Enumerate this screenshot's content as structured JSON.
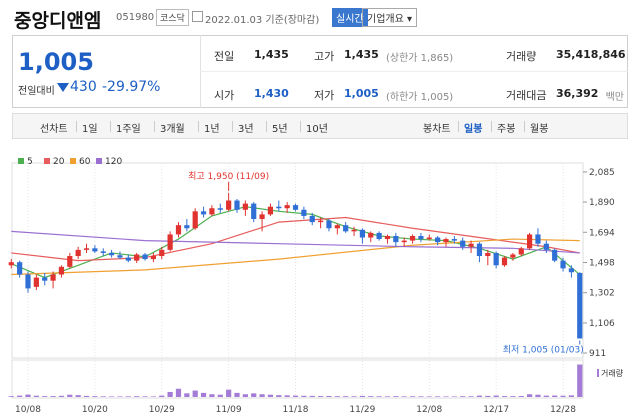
{
  "header": {
    "name": "중앙디앤엠",
    "code": "051980",
    "market": "코스닥",
    "date": "2022.01.03 기준(장마감)",
    "realtime": "실시간",
    "company": "기업개요 ▾"
  },
  "quote": {
    "price": "1,005",
    "change_label": "전일대비",
    "change": "430",
    "change_pct": "-29.97%"
  },
  "stats": [
    {
      "label": "전일",
      "value": "1,435"
    },
    {
      "label": "고가",
      "value": "1,435",
      "note": "(상한가 1,865)"
    },
    {
      "label": "거래량",
      "value": "35,418,846"
    },
    {
      "label": "시가",
      "value": "1,430"
    },
    {
      "label": "저가",
      "value": "1,005",
      "note": "(하한가 1,005)"
    },
    {
      "label": "거래대금",
      "value": "36,392",
      "note": "백만"
    }
  ],
  "tabs": {
    "line_label": "선차트",
    "line_tabs": [
      "1일",
      "1주일",
      "3개월",
      "1년",
      "3년",
      "5년",
      "10년"
    ],
    "candle_label": "봉차트",
    "candle_tabs": [
      "일봉",
      "주봉",
      "월봉"
    ],
    "selected": "일봉"
  },
  "chart_data": {
    "type": "candlestick",
    "up_color": "#e0322f",
    "down_color": "#2f6fd6",
    "categories": [
      null,
      null,
      "10/08",
      null,
      null,
      null,
      null,
      null,
      null,
      null,
      "10/20",
      null,
      null,
      null,
      null,
      null,
      null,
      null,
      "10/29",
      null,
      null,
      null,
      null,
      null,
      null,
      null,
      "11/09",
      null,
      null,
      null,
      null,
      null,
      null,
      null,
      "11/18",
      null,
      null,
      null,
      null,
      null,
      null,
      null,
      "11/29",
      null,
      null,
      null,
      null,
      null,
      null,
      null,
      "12/08",
      null,
      null,
      null,
      null,
      null,
      null,
      null,
      "12/17",
      null,
      null,
      null,
      null,
      null,
      null,
      null,
      "12/28",
      null,
      null
    ],
    "open": [
      1480,
      1500,
      1420,
      1340,
      1400,
      1380,
      1420,
      1470,
      1540,
      1580,
      1590,
      1570,
      1560,
      1545,
      1530,
      1510,
      1550,
      1520,
      1540,
      1580,
      1680,
      1740,
      1720,
      1830,
      1810,
      1850,
      1840,
      1900,
      1840,
      1880,
      1780,
      1810,
      1860,
      1850,
      1870,
      1840,
      1800,
      1760,
      1770,
      1720,
      1740,
      1700,
      1710,
      1660,
      1690,
      1650,
      1670,
      1630,
      1640,
      1670,
      1650,
      1660,
      1630,
      1650,
      1640,
      1600,
      1620,
      1540,
      1560,
      1480,
      1530,
      1550,
      1590,
      1680,
      1620,
      1580,
      1510,
      1460,
      1430
    ],
    "high": [
      1520,
      1510,
      1440,
      1420,
      1430,
      1440,
      1480,
      1560,
      1600,
      1620,
      1610,
      1590,
      1580,
      1570,
      1550,
      1560,
      1560,
      1560,
      1600,
      1700,
      1760,
      1780,
      1850,
      1860,
      1870,
      1880,
      1950,
      1910,
      1900,
      1890,
      1830,
      1880,
      1900,
      1890,
      1880,
      1860,
      1820,
      1790,
      1780,
      1750,
      1760,
      1730,
      1720,
      1700,
      1700,
      1680,
      1690,
      1660,
      1680,
      1690,
      1680,
      1670,
      1660,
      1670,
      1660,
      1640,
      1630,
      1580,
      1570,
      1540,
      1560,
      1600,
      1690,
      1720,
      1640,
      1590,
      1530,
      1480,
      1435
    ],
    "low": [
      1460,
      1400,
      1302,
      1320,
      1350,
      1330,
      1400,
      1460,
      1520,
      1560,
      1560,
      1540,
      1530,
      1520,
      1500,
      1495,
      1510,
      1500,
      1520,
      1570,
      1660,
      1700,
      1710,
      1790,
      1800,
      1820,
      1830,
      1820,
      1800,
      1760,
      1700,
      1800,
      1830,
      1820,
      1830,
      1780,
      1740,
      1720,
      1700,
      1680,
      1690,
      1670,
      1620,
      1630,
      1640,
      1620,
      1600,
      1600,
      1620,
      1630,
      1640,
      1610,
      1600,
      1620,
      1580,
      1560,
      1500,
      1480,
      1460,
      1470,
      1510,
      1540,
      1580,
      1600,
      1560,
      1500,
      1440,
      1400,
      1005
    ],
    "close": [
      1500,
      1420,
      1330,
      1400,
      1380,
      1420,
      1470,
      1540,
      1580,
      1590,
      1570,
      1560,
      1545,
      1530,
      1510,
      1550,
      1520,
      1540,
      1580,
      1680,
      1740,
      1720,
      1830,
      1810,
      1850,
      1840,
      1900,
      1840,
      1880,
      1780,
      1810,
      1860,
      1850,
      1870,
      1840,
      1800,
      1760,
      1770,
      1720,
      1740,
      1700,
      1710,
      1660,
      1690,
      1650,
      1670,
      1630,
      1640,
      1670,
      1650,
      1660,
      1630,
      1650,
      1640,
      1600,
      1620,
      1540,
      1560,
      1480,
      1530,
      1550,
      1590,
      1680,
      1620,
      1580,
      1510,
      1460,
      1435,
      1005
    ],
    "volume": [
      900000,
      1500000,
      2600000,
      1400000,
      900000,
      1000000,
      1300000,
      2500000,
      2000000,
      1200000,
      900000,
      700000,
      600000,
      600000,
      700000,
      900000,
      700000,
      600000,
      1500000,
      5500000,
      9000000,
      4000000,
      7000000,
      4500000,
      3000000,
      2500000,
      8000000,
      4500000,
      3000000,
      4000000,
      3000000,
      2500000,
      2000000,
      1800000,
      1500000,
      1300000,
      1200000,
      1000000,
      1100000,
      900000,
      900000,
      800000,
      1200000,
      900000,
      800000,
      700000,
      900000,
      700000,
      800000,
      700000,
      600000,
      700000,
      600000,
      600000,
      900000,
      800000,
      1500000,
      1200000,
      1600000,
      1000000,
      900000,
      1100000,
      3000000,
      2500000,
      1500000,
      1600000,
      1400000,
      1800000,
      35418846
    ],
    "vlim": [
      0,
      36000000
    ],
    "volume_color": "#a47bd6",
    "volume_label": "거래량",
    "ylim": [
      911,
      2085
    ],
    "yticks": [
      {
        "value": 2085,
        "label": "2,085"
      },
      {
        "value": 1890,
        "label": "1,890"
      },
      {
        "value": 1694,
        "label": "1,694"
      },
      {
        "value": 1498,
        "label": "1,498"
      },
      {
        "value": 1302,
        "label": "1,302"
      },
      {
        "value": 1106,
        "label": "1,106"
      },
      911
    ],
    "moving_averages": [
      {
        "name": "5",
        "color": "#4caf50",
        "x": [
          0,
          4,
          8,
          12,
          16,
          20,
          24,
          28,
          32,
          36,
          40,
          44,
          48,
          52,
          56,
          60,
          64,
          68
        ],
        "values": [
          1490,
          1400,
          1480,
          1560,
          1535,
          1650,
          1800,
          1860,
          1830,
          1810,
          1730,
          1670,
          1650,
          1640,
          1590,
          1520,
          1600,
          1420
        ]
      },
      {
        "name": "20",
        "color": "#e85b5b",
        "x": [
          0,
          8,
          16,
          24,
          32,
          40,
          48,
          56,
          64,
          68
        ],
        "values": [
          1560,
          1510,
          1530,
          1620,
          1760,
          1790,
          1720,
          1660,
          1600,
          1560
        ]
      },
      {
        "name": "60",
        "color": "#f0a030",
        "x": [
          0,
          16,
          32,
          48,
          60,
          68
        ],
        "values": [
          1420,
          1450,
          1520,
          1610,
          1650,
          1640
        ]
      },
      {
        "name": "120",
        "color": "#9a6fd0",
        "x": [
          0,
          16,
          32,
          48,
          60,
          68
        ],
        "values": [
          1700,
          1640,
          1620,
          1600,
          1590,
          1560
        ]
      }
    ],
    "annotations": {
      "high": "최고 1,950 (11/09)",
      "low": "최저 1,005 (01/03)"
    }
  }
}
